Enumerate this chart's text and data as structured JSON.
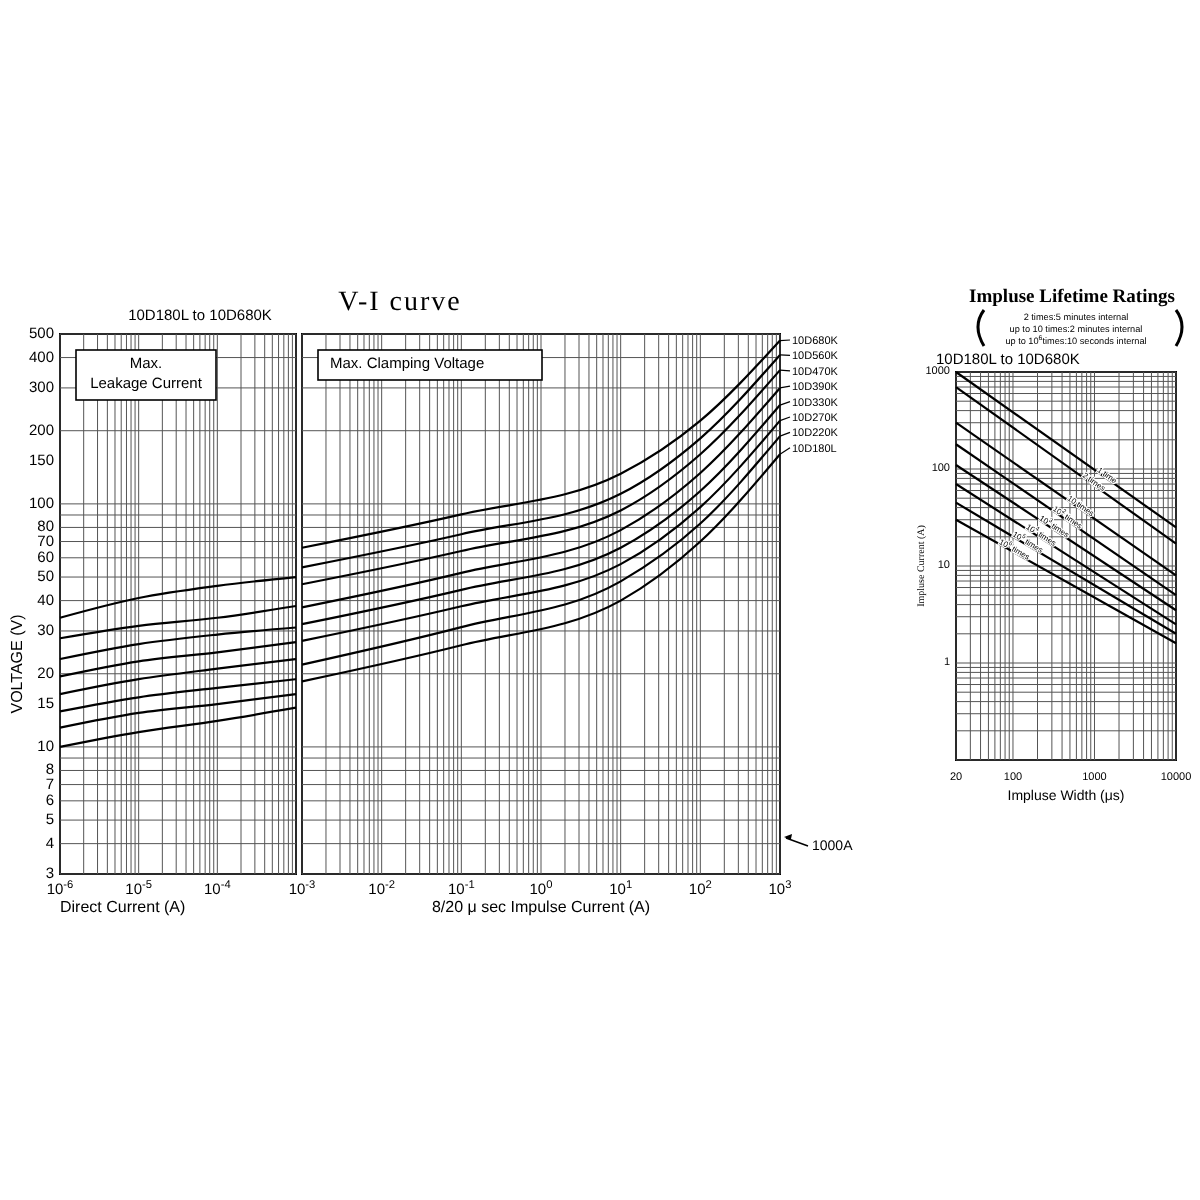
{
  "chart_data": [
    {
      "type": "line",
      "subtitle": "10D180L to 10D680K",
      "xlabel": "Direct Current  (A)",
      "ylabel": "VOLTAGE (V)",
      "log": "xy",
      "grid": true,
      "xlim": [
        1e-06,
        0.001
      ],
      "xticks": [
        {
          "value": 1e-06,
          "label": "10$^{-6}$"
        },
        {
          "value": 1e-05,
          "label": "10$^{-5}$"
        },
        {
          "value": 0.0001,
          "label": "10$^{-4}$"
        }
      ],
      "ylim": [
        3,
        500
      ],
      "yticks": [
        3,
        4,
        5,
        6,
        7,
        8,
        10,
        15,
        20,
        30,
        40,
        50,
        60,
        70,
        80,
        100,
        150,
        200,
        300,
        400,
        500
      ],
      "annotations": [
        "Max.\nLeakage Current"
      ],
      "x": [
        1e-06,
        1e-05,
        0.0001,
        0.001
      ],
      "series": [
        {
          "color": "#000000",
          "values": [
            10,
            11.5,
            12.8,
            14.5
          ]
        },
        {
          "color": "#000000",
          "values": [
            12,
            13.8,
            15,
            16.5
          ]
        },
        {
          "color": "#000000",
          "values": [
            14,
            16,
            17.5,
            19
          ]
        },
        {
          "color": "#000000",
          "values": [
            16.5,
            19,
            21,
            23
          ]
        },
        {
          "color": "#000000",
          "values": [
            19.5,
            22.5,
            24.5,
            27
          ]
        },
        {
          "color": "#000000",
          "values": [
            23,
            26.5,
            29,
            31
          ]
        },
        {
          "color": "#000000",
          "values": [
            28,
            31.5,
            34,
            38
          ]
        },
        {
          "color": "#000000",
          "values": [
            34,
            41,
            46,
            50
          ]
        }
      ]
    },
    {
      "type": "line",
      "title": "V-I curve",
      "xlabel": "8/20 μ sec Impulse Current (A)",
      "log": "xy",
      "grid": true,
      "legend": "right",
      "tick_labels": "x",
      "xlim": [
        0.001,
        1000
      ],
      "xticks": [
        {
          "value": 0.001,
          "label": "10$^{-3}$"
        },
        {
          "value": 0.01,
          "label": "10$^{-2}$"
        },
        {
          "value": 0.1,
          "label": "10$^{-1}$"
        },
        {
          "value": 1,
          "label": "10$^{0}$"
        },
        {
          "value": 10,
          "label": "10$^{1}$"
        },
        {
          "value": 100,
          "label": "10$^{2}$"
        },
        {
          "value": 1000,
          "label": "10$^{3}$"
        }
      ],
      "ylim": [
        3,
        500
      ],
      "yticks": [
        3,
        4,
        5,
        6,
        7,
        8,
        10,
        15,
        20,
        30,
        40,
        50,
        60,
        70,
        80,
        100,
        150,
        200,
        300,
        400,
        500
      ],
      "annotations": [
        "Max. Clamping Voltage",
        "1000A"
      ],
      "x": [
        0.001,
        0.1,
        10,
        100,
        1000
      ],
      "series": [
        {
          "name": "10D180L",
          "color": "#000000",
          "values": [
            18.6,
            26.2,
            40,
            70,
            160
          ]
        },
        {
          "name": "10D220K",
          "color": "#000000",
          "values": [
            21.8,
            31.1,
            48,
            83,
            190
          ]
        },
        {
          "name": "10D270K",
          "color": "#000000",
          "values": [
            27.3,
            37.9,
            56.5,
            97,
            220
          ]
        },
        {
          "name": "10D330K",
          "color": "#000000",
          "values": [
            32,
            44.3,
            66,
            113,
            255
          ]
        },
        {
          "name": "10D390K",
          "color": "#000000",
          "values": [
            37.5,
            52,
            78,
            134,
            300
          ]
        },
        {
          "name": "10D470K",
          "color": "#000000",
          "values": [
            46.7,
            64,
            94,
            160,
            355
          ]
        },
        {
          "name": "10D560K",
          "color": "#000000",
          "values": [
            54.8,
            75,
            110,
            186,
            410
          ]
        },
        {
          "name": "10D680K",
          "color": "#000000",
          "values": [
            66,
            90.5,
            133,
            220,
            470
          ]
        }
      ]
    },
    {
      "type": "line",
      "title": "Impluse Lifetime Ratings",
      "subtitle": "2 times:5 minutes internal\nup to 10 times:2 minutes internal\nup to 10$^{6}$times:10 seconds internal",
      "xlabel": "Impluse Width (μs)",
      "ylabel": "Impluse Current (A)",
      "log": "xy",
      "grid": true,
      "xlim": [
        20,
        10000
      ],
      "xticks": [
        20,
        100,
        1000,
        10000
      ],
      "ylim": [
        0.1,
        1000
      ],
      "yticks": [
        1,
        10,
        100,
        1000
      ],
      "annotations": [
        "10D180L to 10D680K"
      ],
      "x": [
        20,
        10000
      ],
      "series": [
        {
          "name": "1 time",
          "color": "#000000",
          "values": [
            1000,
            25
          ]
        },
        {
          "name": "2 times",
          "color": "#000000",
          "values": [
            700,
            17
          ]
        },
        {
          "name": "10 times",
          "color": "#000000",
          "values": [
            300,
            8
          ]
        },
        {
          "name": "10$^{2}$ times",
          "color": "#000000",
          "values": [
            180,
            5
          ]
        },
        {
          "name": "10$^{3}$ times",
          "color": "#000000",
          "values": [
            110,
            3.5
          ]
        },
        {
          "name": "10$^{4}$ times",
          "color": "#000000",
          "values": [
            70,
            2.5
          ]
        },
        {
          "name": "10$^{5}$ times",
          "color": "#000000",
          "values": [
            45,
            2
          ]
        },
        {
          "name": "10$^{6}$ times",
          "color": "#000000",
          "values": [
            30,
            1.6
          ]
        }
      ]
    }
  ]
}
